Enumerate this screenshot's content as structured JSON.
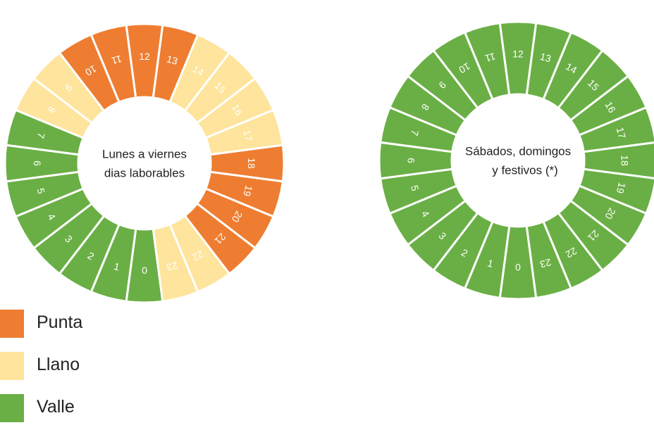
{
  "colors": {
    "punta": "#ee7d31",
    "llano": "#fee49c",
    "valle": "#6aaf45",
    "separator": "#ffffff",
    "hour_text": "#ffffff",
    "center_text": "#222222"
  },
  "chart_data": [
    {
      "type": "donut",
      "title_lines": [
        "Lunes a viernes",
        "dias laborables"
      ],
      "hours": [
        "0",
        "1",
        "2",
        "3",
        "4",
        "5",
        "6",
        "7",
        "8",
        "9",
        "10",
        "11",
        "12",
        "13",
        "14",
        "15",
        "16",
        "17",
        "18",
        "19",
        "20",
        "21",
        "22",
        "23"
      ],
      "periods": [
        "valle",
        "valle",
        "valle",
        "valle",
        "valle",
        "valle",
        "valle",
        "valle",
        "llano",
        "llano",
        "punta",
        "punta",
        "punta",
        "punta",
        "llano",
        "llano",
        "llano",
        "llano",
        "punta",
        "punta",
        "punta",
        "punta",
        "llano",
        "llano"
      ]
    },
    {
      "type": "donut",
      "title_lines": [
        "Sábados, domingos",
        "y festivos (*)"
      ],
      "hours": [
        "0",
        "1",
        "2",
        "3",
        "4",
        "5",
        "6",
        "7",
        "8",
        "9",
        "10",
        "11",
        "12",
        "13",
        "14",
        "15",
        "16",
        "17",
        "18",
        "19",
        "20",
        "21",
        "22",
        "23"
      ],
      "periods": [
        "valle",
        "valle",
        "valle",
        "valle",
        "valle",
        "valle",
        "valle",
        "valle",
        "valle",
        "valle",
        "valle",
        "valle",
        "valle",
        "valle",
        "valle",
        "valle",
        "valle",
        "valle",
        "valle",
        "valle",
        "valle",
        "valle",
        "valle",
        "valle"
      ]
    }
  ],
  "legend": [
    {
      "key": "punta",
      "label": "Punta"
    },
    {
      "key": "llano",
      "label": "Llano"
    },
    {
      "key": "valle",
      "label": "Valle"
    }
  ]
}
